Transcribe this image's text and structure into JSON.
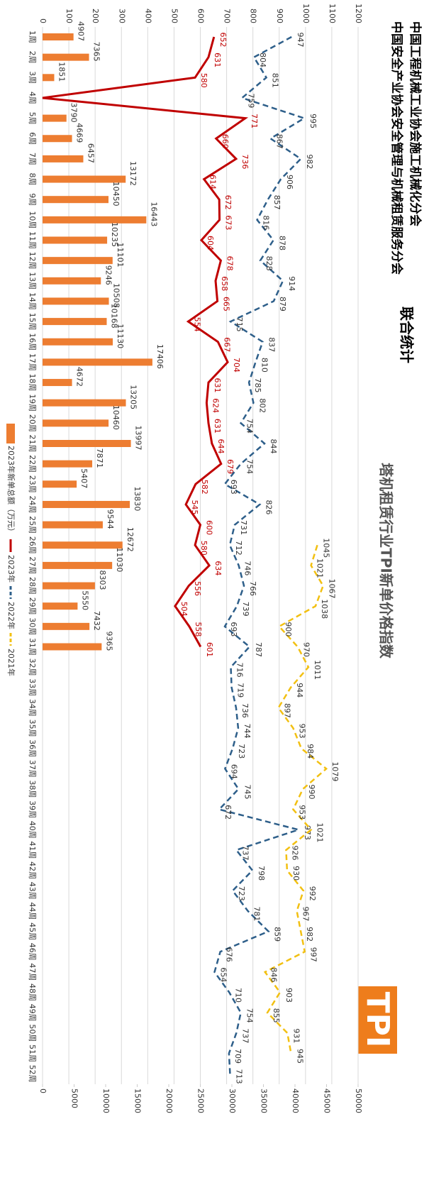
{
  "header": {
    "line1": "中国工程机械工业协会施工机械化分会",
    "line2": "中国安全产业协会安全管理与机械租赁服务分会",
    "joint": "联合统计",
    "logo": "TPI"
  },
  "chart_data": {
    "type": "combo",
    "title": "塔机租赁行业TPI新单价格指数",
    "categories": [
      "1周",
      "2周",
      "3周",
      "4周",
      "5周",
      "6周",
      "7周",
      "8周",
      "9周",
      "10周",
      "11周",
      "12周",
      "13周",
      "14周",
      "15周",
      "16周",
      "17周",
      "18周",
      "19周",
      "20周",
      "21周",
      "22周",
      "23周",
      "24周",
      "25周",
      "26周",
      "27周",
      "28周",
      "29周",
      "30周",
      "31周",
      "32周",
      "33周",
      "34周",
      "35周",
      "36周",
      "37周",
      "38周",
      "39周",
      "40周",
      "41周",
      "42周",
      "43周",
      "44周",
      "45周",
      "46周",
      "47周",
      "48周",
      "49周",
      "50周",
      "51周",
      "52周"
    ],
    "ylim": [
      0,
      1200
    ],
    "yticks": [
      0,
      100,
      200,
      300,
      400,
      500,
      600,
      700,
      800,
      900,
      1000,
      1100,
      1200
    ],
    "y2lim": [
      0,
      50000
    ],
    "y2ticks": [
      0,
      5000,
      10000,
      15000,
      20000,
      25000,
      30000,
      35000,
      40000,
      45000,
      50000
    ],
    "grid": true,
    "series": [
      {
        "name": "2023年新单总额（万元）",
        "type": "bar",
        "axis": "y2",
        "color": "#ed7d31",
        "values": [
          4907,
          7365,
          1851,
          null,
          3790,
          4669,
          6457,
          13172,
          10450,
          16443,
          10235,
          11101,
          9246,
          10508,
          10168,
          11130,
          17406,
          4672,
          13205,
          10460,
          13997,
          7871,
          5407,
          13830,
          9544,
          12672,
          11030,
          8303,
          5550,
          7432,
          9365,
          null,
          null,
          null,
          null,
          null,
          null,
          null,
          null,
          null,
          null,
          null,
          null,
          null,
          null,
          null,
          null,
          null,
          null,
          null,
          null,
          null
        ]
      },
      {
        "name": "2023年",
        "type": "line",
        "color": "#c00000",
        "dash": false,
        "values": [
          652,
          631,
          580,
          0,
          771,
          660,
          736,
          614,
          672,
          673,
          604,
          678,
          658,
          665,
          554,
          667,
          704,
          631,
          624,
          631,
          644,
          679,
          582,
          545,
          600,
          580,
          634,
          556,
          504,
          558,
          601,
          null,
          null,
          null,
          null,
          null,
          null,
          null,
          null,
          null,
          null,
          null,
          null,
          null,
          null,
          null,
          null,
          null,
          null,
          null,
          null,
          null
        ],
        "value_labels": [
          "652",
          "631",
          "580",
          null,
          "771",
          "660",
          "736",
          "614",
          "672",
          "673",
          "604",
          "678",
          "658",
          "665",
          "554",
          "667",
          "704",
          "631",
          "624",
          "631",
          "644",
          "679",
          "582",
          "545",
          "600",
          "580",
          "634",
          "556",
          "504",
          "558",
          "601",
          null,
          null,
          null,
          null,
          null,
          null,
          null,
          null,
          null,
          null,
          null,
          null,
          null,
          null,
          null,
          null,
          null,
          null,
          null,
          null,
          null
        ]
      },
      {
        "name": "2022年",
        "type": "line",
        "color": "#2e5f8a",
        "dash": true,
        "values": [
          947,
          804,
          851,
          759,
          995,
          867,
          982,
          906,
          857,
          816,
          878,
          828,
          914,
          879,
          715,
          837,
          810,
          785,
          802,
          754,
          844,
          754,
          693,
          826,
          731,
          712,
          746,
          766,
          739,
          693,
          787,
          716,
          719,
          736,
          744,
          723,
          694,
          745,
          672,
          973,
          737,
          798,
          723,
          781,
          859,
          676,
          654,
          710,
          754,
          737,
          709,
          713
        ]
      },
      {
        "name": "2021年",
        "type": "line",
        "color": "#f2c012",
        "dash": true,
        "values": [
          null,
          null,
          null,
          null,
          null,
          null,
          null,
          null,
          null,
          null,
          null,
          null,
          null,
          null,
          null,
          null,
          null,
          null,
          null,
          null,
          null,
          null,
          null,
          null,
          null,
          1045,
          1021,
          1067,
          1038,
          900,
          970,
          1011,
          944,
          897,
          953,
          984,
          1079,
          990,
          953,
          1021,
          926,
          930,
          992,
          967,
          982,
          997,
          846,
          903,
          855,
          931,
          945,
          null
        ]
      }
    ]
  }
}
